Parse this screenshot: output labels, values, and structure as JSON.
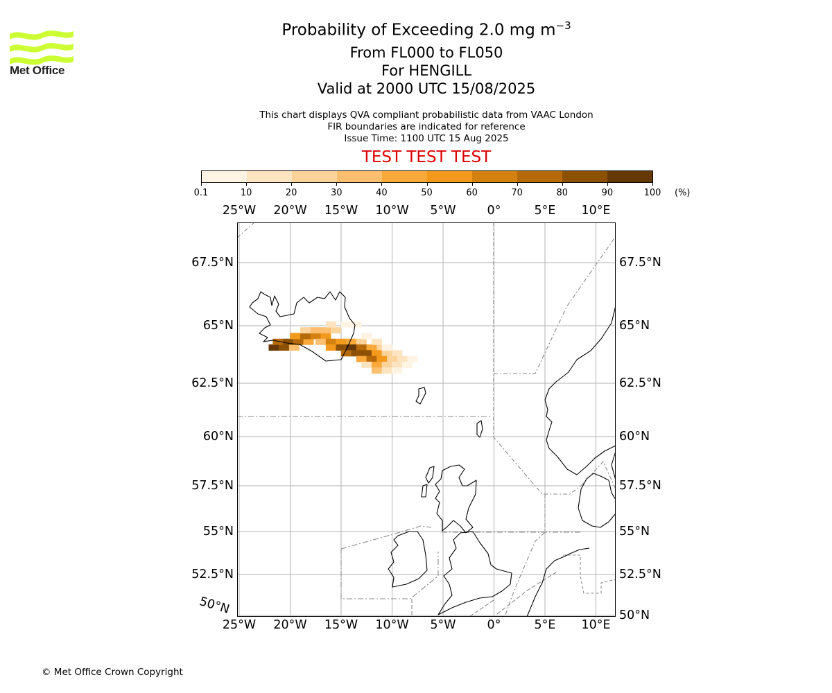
{
  "logo": {
    "text": "Met Office",
    "colors": {
      "waves": "#ccff33",
      "text": "#222222"
    }
  },
  "title": {
    "main_prefix": "Probability of Exceeding 2.0 mg m",
    "main_exponent": "−3",
    "level": "From FL000 to FL050",
    "location": "For HENGILL",
    "valid": "Valid at 2000 UTC 15/08/2025"
  },
  "subtitle": {
    "line1": "This chart displays QVA compliant probabilistic data from VAAC London",
    "line2": "FIR boundaries are indicated for reference",
    "line3": "Issue Time: 1100 UTC 15 Aug 2025"
  },
  "banner": {
    "text": "TEST TEST TEST",
    "color": "#dd0000"
  },
  "colorbar": {
    "ticks": [
      "0.1",
      "10",
      "20",
      "30",
      "40",
      "50",
      "60",
      "70",
      "80",
      "90",
      "100"
    ],
    "unit": "(%)",
    "colors": [
      "#fff4e3",
      "#fde4c0",
      "#fdd39c",
      "#fcbf70",
      "#f9a93a",
      "#f39a1c",
      "#d5810f",
      "#b66a0a",
      "#8d5106",
      "#643807"
    ]
  },
  "axes": {
    "lon_labels": [
      "25°W",
      "20°W",
      "15°W",
      "10°W",
      "5°W",
      "0°",
      "5°E",
      "10°E"
    ],
    "lat_labels": [
      "67.5°N",
      "65°N",
      "62.5°N",
      "60°N",
      "57.5°N",
      "55°N",
      "52.5°N",
      "50°N"
    ],
    "lat_label_diag": "50°N",
    "lon_values": [
      -25,
      -20,
      -15,
      -10,
      -5,
      0,
      5,
      10
    ],
    "lat_values": [
      67.5,
      65,
      62.5,
      60,
      57.5,
      55,
      52.5,
      50
    ]
  },
  "plume": {
    "cells": [
      {
        "lon": -21.6,
        "lat": 64.05,
        "p": 95
      },
      {
        "lon": -20.6,
        "lat": 64.05,
        "p": 82
      },
      {
        "lon": -19.6,
        "lat": 64.05,
        "p": 30
      },
      {
        "lon": -21.2,
        "lat": 64.3,
        "p": 78
      },
      {
        "lon": -20.2,
        "lat": 64.3,
        "p": 88
      },
      {
        "lon": -19.2,
        "lat": 64.3,
        "p": 72
      },
      {
        "lon": -18.2,
        "lat": 64.3,
        "p": 45
      },
      {
        "lon": -19.5,
        "lat": 64.55,
        "p": 55
      },
      {
        "lon": -18.5,
        "lat": 64.55,
        "p": 78
      },
      {
        "lon": -17.5,
        "lat": 64.55,
        "p": 65
      },
      {
        "lon": -16.5,
        "lat": 64.55,
        "p": 50
      },
      {
        "lon": -18.5,
        "lat": 64.8,
        "p": 20
      },
      {
        "lon": -17.5,
        "lat": 64.8,
        "p": 38
      },
      {
        "lon": -16.5,
        "lat": 64.8,
        "p": 30
      },
      {
        "lon": -15.5,
        "lat": 64.8,
        "p": 22
      },
      {
        "lon": -16.0,
        "lat": 65.05,
        "p": 10
      },
      {
        "lon": -14.5,
        "lat": 65.05,
        "p": 8
      },
      {
        "lon": -13.5,
        "lat": 65.05,
        "p": 5
      },
      {
        "lon": -17.0,
        "lat": 64.3,
        "p": 30
      },
      {
        "lon": -16.0,
        "lat": 64.3,
        "p": 62
      },
      {
        "lon": -15.0,
        "lat": 64.3,
        "p": 58
      },
      {
        "lon": -14.0,
        "lat": 64.3,
        "p": 45
      },
      {
        "lon": -13.0,
        "lat": 64.3,
        "p": 25
      },
      {
        "lon": -16.0,
        "lat": 64.05,
        "p": 50
      },
      {
        "lon": -15.0,
        "lat": 64.05,
        "p": 85
      },
      {
        "lon": -14.0,
        "lat": 64.05,
        "p": 92
      },
      {
        "lon": -13.0,
        "lat": 64.05,
        "p": 75
      },
      {
        "lon": -12.0,
        "lat": 64.05,
        "p": 40
      },
      {
        "lon": -11.0,
        "lat": 64.05,
        "p": 20
      },
      {
        "lon": -14.5,
        "lat": 63.8,
        "p": 70
      },
      {
        "lon": -13.5,
        "lat": 63.8,
        "p": 88
      },
      {
        "lon": -12.5,
        "lat": 63.8,
        "p": 82
      },
      {
        "lon": -11.5,
        "lat": 63.8,
        "p": 55
      },
      {
        "lon": -10.5,
        "lat": 63.8,
        "p": 25
      },
      {
        "lon": -9.5,
        "lat": 63.8,
        "p": 12
      },
      {
        "lon": -13.0,
        "lat": 63.55,
        "p": 45
      },
      {
        "lon": -12.0,
        "lat": 63.55,
        "p": 75
      },
      {
        "lon": -11.0,
        "lat": 63.55,
        "p": 58
      },
      {
        "lon": -10.0,
        "lat": 63.55,
        "p": 22
      },
      {
        "lon": -9.0,
        "lat": 63.55,
        "p": 10
      },
      {
        "lon": -8.0,
        "lat": 63.55,
        "p": 6
      },
      {
        "lon": -12.5,
        "lat": 63.3,
        "p": 18
      },
      {
        "lon": -11.5,
        "lat": 63.3,
        "p": 48
      },
      {
        "lon": -10.5,
        "lat": 63.3,
        "p": 25
      },
      {
        "lon": -9.5,
        "lat": 63.3,
        "p": 10
      },
      {
        "lon": -11.5,
        "lat": 63.05,
        "p": 30
      },
      {
        "lon": -10.5,
        "lat": 63.05,
        "p": 12
      },
      {
        "lon": -9.5,
        "lat": 63.05,
        "p": 5
      },
      {
        "lon": -12.5,
        "lat": 64.55,
        "p": 8
      },
      {
        "lon": -11.5,
        "lat": 64.3,
        "p": 10
      },
      {
        "lon": -10.5,
        "lat": 64.05,
        "p": 8
      },
      {
        "lon": -8.5,
        "lat": 63.3,
        "p": 6
      }
    ]
  },
  "copyright": "© Met Office Crown Copyright"
}
